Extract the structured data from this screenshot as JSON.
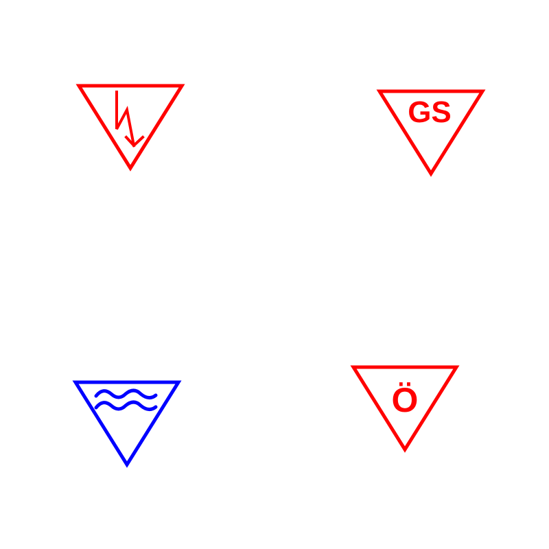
{
  "signs": [
    {
      "id": "electrical",
      "icon": "lightning-bolt-icon",
      "text": "",
      "color": "#ff0000"
    },
    {
      "id": "gs",
      "icon": "",
      "text": "GS",
      "color": "#ff0000"
    },
    {
      "id": "water",
      "icon": "water-waves-icon",
      "text": "",
      "color": "#0000ff"
    },
    {
      "id": "oe",
      "icon": "",
      "text": "Ö",
      "color": "#ff0000"
    }
  ]
}
